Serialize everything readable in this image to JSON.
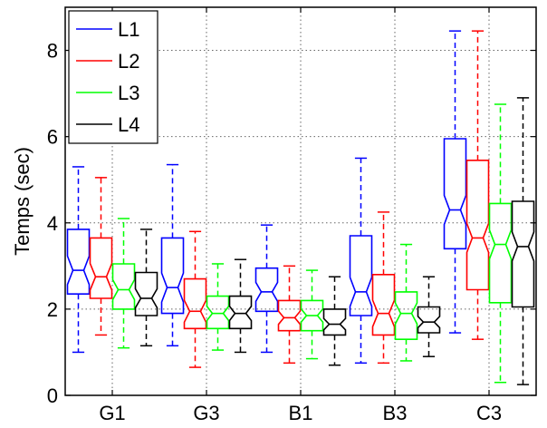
{
  "chart_data": {
    "type": "box",
    "notched": true,
    "title": "",
    "xlabel": "",
    "ylabel": "Temps (sec)",
    "ylim": [
      0,
      9.0
    ],
    "yticks": [
      0,
      2,
      4,
      6,
      8
    ],
    "grid": true,
    "legend_placement": "top-left",
    "categories": [
      "G1",
      "G3",
      "B1",
      "B3",
      "C3"
    ],
    "series": [
      {
        "name": "L1",
        "color": "#0000ff",
        "boxes": [
          {
            "whisker_low": 1.0,
            "q1": 2.35,
            "median": 2.9,
            "q3": 3.85,
            "whisker_high": 5.3
          },
          {
            "whisker_low": 1.15,
            "q1": 1.9,
            "median": 2.5,
            "q3": 3.65,
            "whisker_high": 5.35
          },
          {
            "whisker_low": 1.0,
            "q1": 1.95,
            "median": 2.4,
            "q3": 2.95,
            "whisker_high": 3.95
          },
          {
            "whisker_low": 0.75,
            "q1": 1.85,
            "median": 2.4,
            "q3": 3.7,
            "whisker_high": 5.5
          },
          {
            "whisker_low": 1.45,
            "q1": 3.4,
            "median": 4.3,
            "q3": 5.95,
            "whisker_high": 8.45
          }
        ]
      },
      {
        "name": "L2",
        "color": "#ff0000",
        "boxes": [
          {
            "whisker_low": 1.4,
            "q1": 2.25,
            "median": 2.75,
            "q3": 3.65,
            "whisker_high": 5.05
          },
          {
            "whisker_low": 0.65,
            "q1": 1.55,
            "median": 1.95,
            "q3": 2.7,
            "whisker_high": 3.8
          },
          {
            "whisker_low": 0.75,
            "q1": 1.5,
            "median": 1.8,
            "q3": 2.2,
            "whisker_high": 3.0
          },
          {
            "whisker_low": 0.75,
            "q1": 1.4,
            "median": 1.9,
            "q3": 2.8,
            "whisker_high": 4.25
          },
          {
            "whisker_low": 1.3,
            "q1": 2.45,
            "median": 3.65,
            "q3": 5.45,
            "whisker_high": 8.45
          }
        ]
      },
      {
        "name": "L3",
        "color": "#00ff00",
        "boxes": [
          {
            "whisker_low": 1.1,
            "q1": 2.0,
            "median": 2.45,
            "q3": 3.05,
            "whisker_high": 4.1
          },
          {
            "whisker_low": 1.05,
            "q1": 1.55,
            "median": 1.9,
            "q3": 2.3,
            "whisker_high": 3.05
          },
          {
            "whisker_low": 0.85,
            "q1": 1.5,
            "median": 1.85,
            "q3": 2.2,
            "whisker_high": 2.9
          },
          {
            "whisker_low": 0.8,
            "q1": 1.3,
            "median": 1.9,
            "q3": 2.4,
            "whisker_high": 3.5
          },
          {
            "whisker_low": 0.3,
            "q1": 2.15,
            "median": 3.5,
            "q3": 4.45,
            "whisker_high": 6.75
          }
        ]
      },
      {
        "name": "L4",
        "color": "#000000",
        "boxes": [
          {
            "whisker_low": 1.15,
            "q1": 1.85,
            "median": 2.25,
            "q3": 2.85,
            "whisker_high": 3.85
          },
          {
            "whisker_low": 1.0,
            "q1": 1.55,
            "median": 1.9,
            "q3": 2.3,
            "whisker_high": 3.15
          },
          {
            "whisker_low": 0.7,
            "q1": 1.4,
            "median": 1.65,
            "q3": 2.0,
            "whisker_high": 2.75
          },
          {
            "whisker_low": 0.9,
            "q1": 1.45,
            "median": 1.7,
            "q3": 2.05,
            "whisker_high": 2.75
          },
          {
            "whisker_low": 0.25,
            "q1": 2.05,
            "median": 3.45,
            "q3": 4.5,
            "whisker_high": 6.9
          }
        ]
      }
    ]
  }
}
